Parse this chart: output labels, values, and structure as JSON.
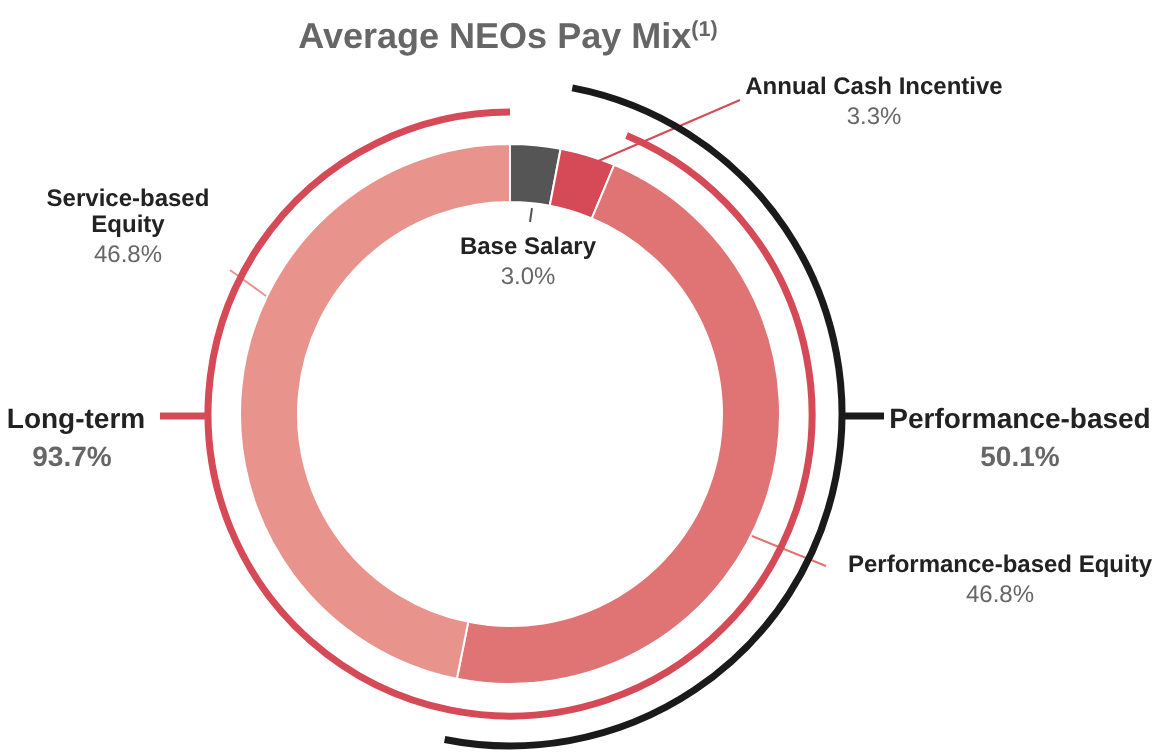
{
  "chart_data": {
    "type": "donut",
    "title": "Average NEOs Pay Mix$^{(1)}$",
    "categories": [
      "Base Salary",
      "Annual Cash Incentive",
      "Performance-based Equity",
      "Service-based Equity"
    ],
    "values": [
      3.0,
      3.3,
      46.8,
      46.8
    ],
    "colors": [
      "#555555",
      "#d64a57",
      "#e07373",
      "#e8948d"
    ],
    "value_labels": [
      "3.0%",
      "3.3%",
      "46.8%",
      "46.8%"
    ],
    "annotations": [
      "Long-term",
      "93.7%",
      "Performance-based",
      "50.1%"
    ]
  }
}
